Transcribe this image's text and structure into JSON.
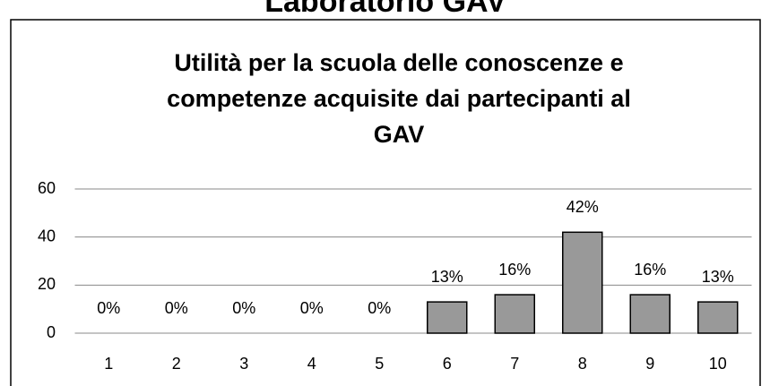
{
  "header": {
    "title": "Laboratorio GAV"
  },
  "chart_data": {
    "type": "bar",
    "title": [
      "Utilità per la scuola delle conoscenze e",
      "competenze acquisite dai partecipanti al",
      "GAV"
    ],
    "categories": [
      "1",
      "2",
      "3",
      "4",
      "5",
      "6",
      "7",
      "8",
      "9",
      "10"
    ],
    "values": [
      0,
      0,
      0,
      0,
      0,
      13,
      16,
      42,
      16,
      13
    ],
    "value_labels": [
      "0%",
      "0%",
      "0%",
      "0%",
      "0%",
      "13%",
      "16%",
      "42%",
      "16%",
      "13%"
    ],
    "color": "#999999",
    "ylim": [
      0,
      60
    ],
    "yticks": [
      0,
      20,
      40,
      60
    ],
    "grid": true
  }
}
